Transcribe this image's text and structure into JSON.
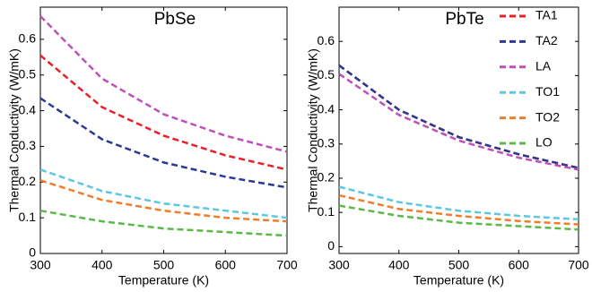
{
  "chart_data": [
    {
      "type": "line",
      "title": "PbSe",
      "x_label": "Temperature (K)",
      "y_label": "Thermal Conductivity  (W/mK)",
      "x": [
        300,
        400,
        500,
        600,
        700
      ],
      "xlim": [
        300,
        700
      ],
      "xticks": [
        300,
        400,
        500,
        600,
        700
      ],
      "ylim": [
        0,
        0.69
      ],
      "yticks": [
        0,
        0.1,
        0.2,
        0.3,
        0.4,
        0.5,
        0.6
      ],
      "line_style": "dashed",
      "series": [
        {
          "color": "#e8202a",
          "values": [
            0.555,
            0.41,
            0.33,
            0.275,
            0.235
          ]
        },
        {
          "color": "#2b3990",
          "values": [
            0.435,
            0.32,
            0.255,
            0.215,
            0.185
          ]
        },
        {
          "color": "#c050b8",
          "values": [
            0.665,
            0.49,
            0.39,
            0.33,
            0.285
          ]
        },
        {
          "color": "#5bc8e0",
          "values": [
            0.235,
            0.175,
            0.14,
            0.12,
            0.1
          ]
        },
        {
          "color": "#f07d2a",
          "values": [
            0.205,
            0.15,
            0.12,
            0.1,
            0.09
          ]
        },
        {
          "color": "#5cb848",
          "values": [
            0.12,
            0.09,
            0.07,
            0.06,
            0.05
          ]
        }
      ]
    },
    {
      "type": "line",
      "title": "PbTe",
      "x_label": "Temperature (K)",
      "y_label": "Thermal Conductivity  (W/mK)",
      "x": [
        300,
        400,
        500,
        600,
        700
      ],
      "xlim": [
        300,
        700
      ],
      "xticks": [
        300,
        400,
        500,
        600,
        700
      ],
      "ylim": [
        -0.02,
        0.7
      ],
      "yticks": [
        0,
        0.1,
        0.2,
        0.3,
        0.4,
        0.5,
        0.6
      ],
      "line_style": "dashed",
      "legend": "upper right",
      "series": [
        {
          "name": "TA1",
          "color": "#e8202a",
          "values": [
            0.53,
            0.4,
            0.32,
            0.27,
            0.23
          ]
        },
        {
          "name": "TA2",
          "color": "#2b3990",
          "values": [
            0.53,
            0.4,
            0.32,
            0.27,
            0.23
          ]
        },
        {
          "name": "LA",
          "color": "#c050b8",
          "values": [
            0.505,
            0.385,
            0.31,
            0.26,
            0.225
          ]
        },
        {
          "name": "TO1",
          "color": "#5bc8e0",
          "values": [
            0.175,
            0.13,
            0.105,
            0.09,
            0.08
          ]
        },
        {
          "name": "TO2",
          "color": "#f07d2a",
          "values": [
            0.15,
            0.11,
            0.09,
            0.075,
            0.065
          ]
        },
        {
          "name": "LO",
          "color": "#5cb848",
          "values": [
            0.12,
            0.09,
            0.07,
            0.06,
            0.05
          ]
        }
      ]
    }
  ]
}
